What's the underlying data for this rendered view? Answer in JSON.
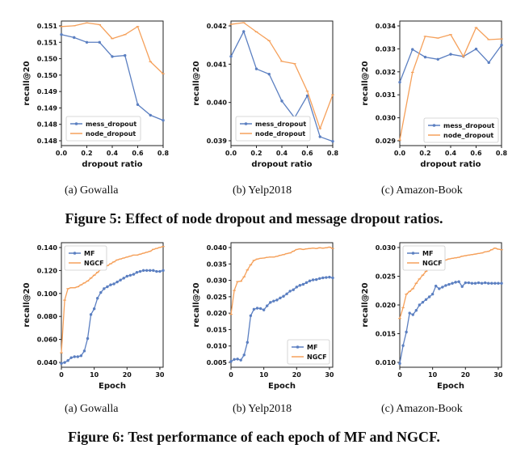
{
  "figure5": {
    "caption": "Figure 5: Effect of node dropout and message dropout ratios.",
    "subcaptions": [
      "(a)  Gowalla",
      "(b)  Yelp2018",
      "(c)  Amazon-Book"
    ]
  },
  "figure6": {
    "caption": "Figure 6: Test performance of each epoch of MF and NGCF.",
    "subcaptions": [
      "(a)  Gowalla",
      "(b)  Yelp2018",
      "(c)  Amazon-Book"
    ]
  },
  "colors": {
    "blue": "#5b7fc1",
    "orange": "#f5a05a"
  },
  "chart_data": [
    {
      "type": "line",
      "xlabel": "dropout ratio",
      "ylabel": "recall@20",
      "xlim": [
        0,
        0.8
      ],
      "ylim": [
        0.1478,
        0.1512
      ],
      "xticks": [
        "0.0",
        "0.2",
        "0.4",
        "0.6",
        "0.8"
      ],
      "yticks": [
        "0.151",
        "0.151",
        "0.150",
        "0.150",
        "0.149",
        "0.149",
        "0.148",
        "0.148"
      ],
      "legend": "lower-left",
      "x": [
        0,
        0.1,
        0.2,
        0.3,
        0.4,
        0.5,
        0.6,
        0.7,
        0.8
      ],
      "series": [
        {
          "name": "mess_dropout",
          "values": [
            0.15083,
            0.15075,
            0.15062,
            0.15062,
            0.15023,
            0.15026,
            0.14892,
            0.14863,
            0.14849
          ]
        },
        {
          "name": "node_dropout",
          "values": [
            0.15105,
            0.15107,
            0.15115,
            0.1511,
            0.15072,
            0.15083,
            0.15105,
            0.15009,
            0.14976
          ]
        }
      ]
    },
    {
      "type": "line",
      "xlabel": "dropout ratio",
      "ylabel": "recall@20",
      "xlim": [
        0,
        0.8
      ],
      "ylim": [
        0.0388,
        0.0426
      ],
      "xticks": [
        "0.0",
        "0.2",
        "0.4",
        "0.6",
        "0.8"
      ],
      "yticks": [
        "0.042",
        "0.041",
        "0.040",
        "0.039"
      ],
      "legend": "lower-left",
      "x": [
        0,
        0.1,
        0.2,
        0.3,
        0.4,
        0.5,
        0.6,
        0.7,
        0.8
      ],
      "series": [
        {
          "name": "mess_dropout",
          "values": [
            0.04152,
            0.04228,
            0.04114,
            0.04098,
            0.04016,
            0.03965,
            0.04032,
            0.03907,
            0.03893
          ]
        },
        {
          "name": "node_dropout",
          "values": [
            0.0425,
            0.04255,
            0.04227,
            0.042,
            0.04137,
            0.0413,
            0.04046,
            0.03932,
            0.04035
          ]
        }
      ]
    },
    {
      "type": "line",
      "xlabel": "dropout ratio",
      "ylabel": "recall@20",
      "xlim": [
        0,
        0.8
      ],
      "ylim": [
        0.0288,
        0.0345
      ],
      "xticks": [
        "0.0",
        "0.2",
        "0.4",
        "0.6",
        "0.8"
      ],
      "yticks": [
        "0.034",
        "0.033",
        "0.032",
        "0.031",
        "0.030",
        "0.029"
      ],
      "legend": "lower-right",
      "x": [
        0,
        0.1,
        0.2,
        0.3,
        0.4,
        0.5,
        0.6,
        0.7,
        0.8
      ],
      "series": [
        {
          "name": "mess_dropout",
          "values": [
            0.0317,
            0.0332,
            0.03285,
            0.03275,
            0.03298,
            0.03288,
            0.03322,
            0.0326,
            0.0334
          ]
        },
        {
          "name": "node_dropout",
          "values": [
            0.02905,
            0.03215,
            0.0338,
            0.03372,
            0.03388,
            0.03288,
            0.0342,
            0.03365,
            0.03368
          ]
        }
      ]
    },
    {
      "type": "line",
      "xlabel": "Epoch",
      "ylabel": "recall@20",
      "xlim": [
        0,
        31
      ],
      "ylim": [
        0.025,
        0.155
      ],
      "xticks": [
        "0",
        "10",
        "20",
        "30"
      ],
      "yticks": [
        "0.140",
        "0.120",
        "0.100",
        "0.080",
        "0.060",
        "0.040"
      ],
      "legend": "top-left",
      "x": [
        0,
        1,
        2,
        3,
        4,
        5,
        6,
        7,
        8,
        9,
        10,
        11,
        12,
        13,
        14,
        15,
        16,
        17,
        18,
        19,
        20,
        21,
        22,
        23,
        24,
        25,
        26,
        27,
        28,
        29,
        30,
        31
      ],
      "series": [
        {
          "name": "MF",
          "values": [
            0.029,
            0.03,
            0.032,
            0.035,
            0.036,
            0.036,
            0.037,
            0.042,
            0.055,
            0.08,
            0.086,
            0.097,
            0.103,
            0.107,
            0.109,
            0.111,
            0.112,
            0.114,
            0.116,
            0.118,
            0.12,
            0.121,
            0.122,
            0.124,
            0.125,
            0.126,
            0.126,
            0.126,
            0.126,
            0.125,
            0.125,
            0.126
          ]
        },
        {
          "name": "NGCF",
          "values": [
            0.04,
            0.095,
            0.107,
            0.108,
            0.108,
            0.109,
            0.111,
            0.113,
            0.115,
            0.118,
            0.121,
            0.124,
            0.127,
            0.129,
            0.131,
            0.133,
            0.135,
            0.137,
            0.138,
            0.139,
            0.14,
            0.141,
            0.142,
            0.142,
            0.143,
            0.144,
            0.145,
            0.146,
            0.148,
            0.149,
            0.15,
            0.151
          ]
        }
      ]
    },
    {
      "type": "line",
      "xlabel": "Epoch",
      "ylabel": "recall@20",
      "xlim": [
        0,
        31
      ],
      "ylim": [
        0.0045,
        0.041
      ],
      "xticks": [
        "0",
        "10",
        "20",
        "30"
      ],
      "yticks": [
        "0.040",
        "0.035",
        "0.030",
        "0.025",
        "0.020",
        "0.015",
        "0.010",
        "0.005"
      ],
      "legend": "lower-right",
      "x": [
        0,
        1,
        2,
        3,
        4,
        5,
        6,
        7,
        8,
        9,
        10,
        11,
        12,
        13,
        14,
        15,
        16,
        17,
        18,
        19,
        20,
        21,
        22,
        23,
        24,
        25,
        26,
        27,
        28,
        29,
        30,
        31
      ],
      "series": [
        {
          "name": "MF",
          "values": [
            0.0062,
            0.0068,
            0.0069,
            0.0066,
            0.0081,
            0.0118,
            0.0196,
            0.0215,
            0.0218,
            0.0217,
            0.0213,
            0.0225,
            0.0235,
            0.0239,
            0.0242,
            0.0248,
            0.0253,
            0.026,
            0.0268,
            0.0272,
            0.028,
            0.0285,
            0.0288,
            0.0293,
            0.0298,
            0.0301,
            0.0302,
            0.0305,
            0.0307,
            0.0308,
            0.0309,
            0.0307
          ]
        },
        {
          "name": "NGCF",
          "values": [
            0.02,
            0.027,
            0.0296,
            0.0297,
            0.031,
            0.033,
            0.0345,
            0.0358,
            0.0362,
            0.0364,
            0.0365,
            0.0367,
            0.0368,
            0.0368,
            0.037,
            0.0373,
            0.0375,
            0.0378,
            0.038,
            0.0385,
            0.039,
            0.0392,
            0.039,
            0.0392,
            0.0393,
            0.0394,
            0.0393,
            0.0395,
            0.0394,
            0.0395,
            0.0397,
            0.0393
          ]
        }
      ]
    },
    {
      "type": "line",
      "xlabel": "Epoch",
      "ylabel": "recall@20",
      "xlim": [
        0,
        31
      ],
      "ylim": [
        0.0095,
        0.0325
      ],
      "xticks": [
        "0",
        "10",
        "20",
        "30"
      ],
      "yticks": [
        "0.030",
        "0.025",
        "0.020",
        "0.015",
        "0.010"
      ],
      "legend": "top-left",
      "x": [
        0,
        1,
        2,
        3,
        4,
        5,
        6,
        7,
        8,
        9,
        10,
        11,
        12,
        13,
        14,
        15,
        16,
        17,
        18,
        19,
        20,
        21,
        22,
        23,
        24,
        25,
        26,
        27,
        28,
        29,
        30,
        31
      ],
      "series": [
        {
          "name": "MF",
          "values": [
            0.0102,
            0.0135,
            0.016,
            0.0195,
            0.0192,
            0.02,
            0.021,
            0.0215,
            0.022,
            0.0225,
            0.023,
            0.0245,
            0.024,
            0.0243,
            0.0246,
            0.0248,
            0.025,
            0.0252,
            0.0253,
            0.0244,
            0.0251,
            0.0251,
            0.025,
            0.025,
            0.0251,
            0.025,
            0.0251,
            0.025,
            0.025,
            0.025,
            0.025,
            0.025
          ]
        },
        {
          "name": "NGCF",
          "values": [
            0.0185,
            0.0205,
            0.023,
            0.0235,
            0.024,
            0.025,
            0.0258,
            0.0265,
            0.0272,
            0.0278,
            0.0282,
            0.0285,
            0.0288,
            0.029,
            0.0293,
            0.0295,
            0.0296,
            0.0297,
            0.0298,
            0.03,
            0.0301,
            0.0302,
            0.0303,
            0.0304,
            0.0305,
            0.0306,
            0.0308,
            0.0309,
            0.0312,
            0.0315,
            0.0313,
            0.0312
          ]
        }
      ]
    }
  ]
}
